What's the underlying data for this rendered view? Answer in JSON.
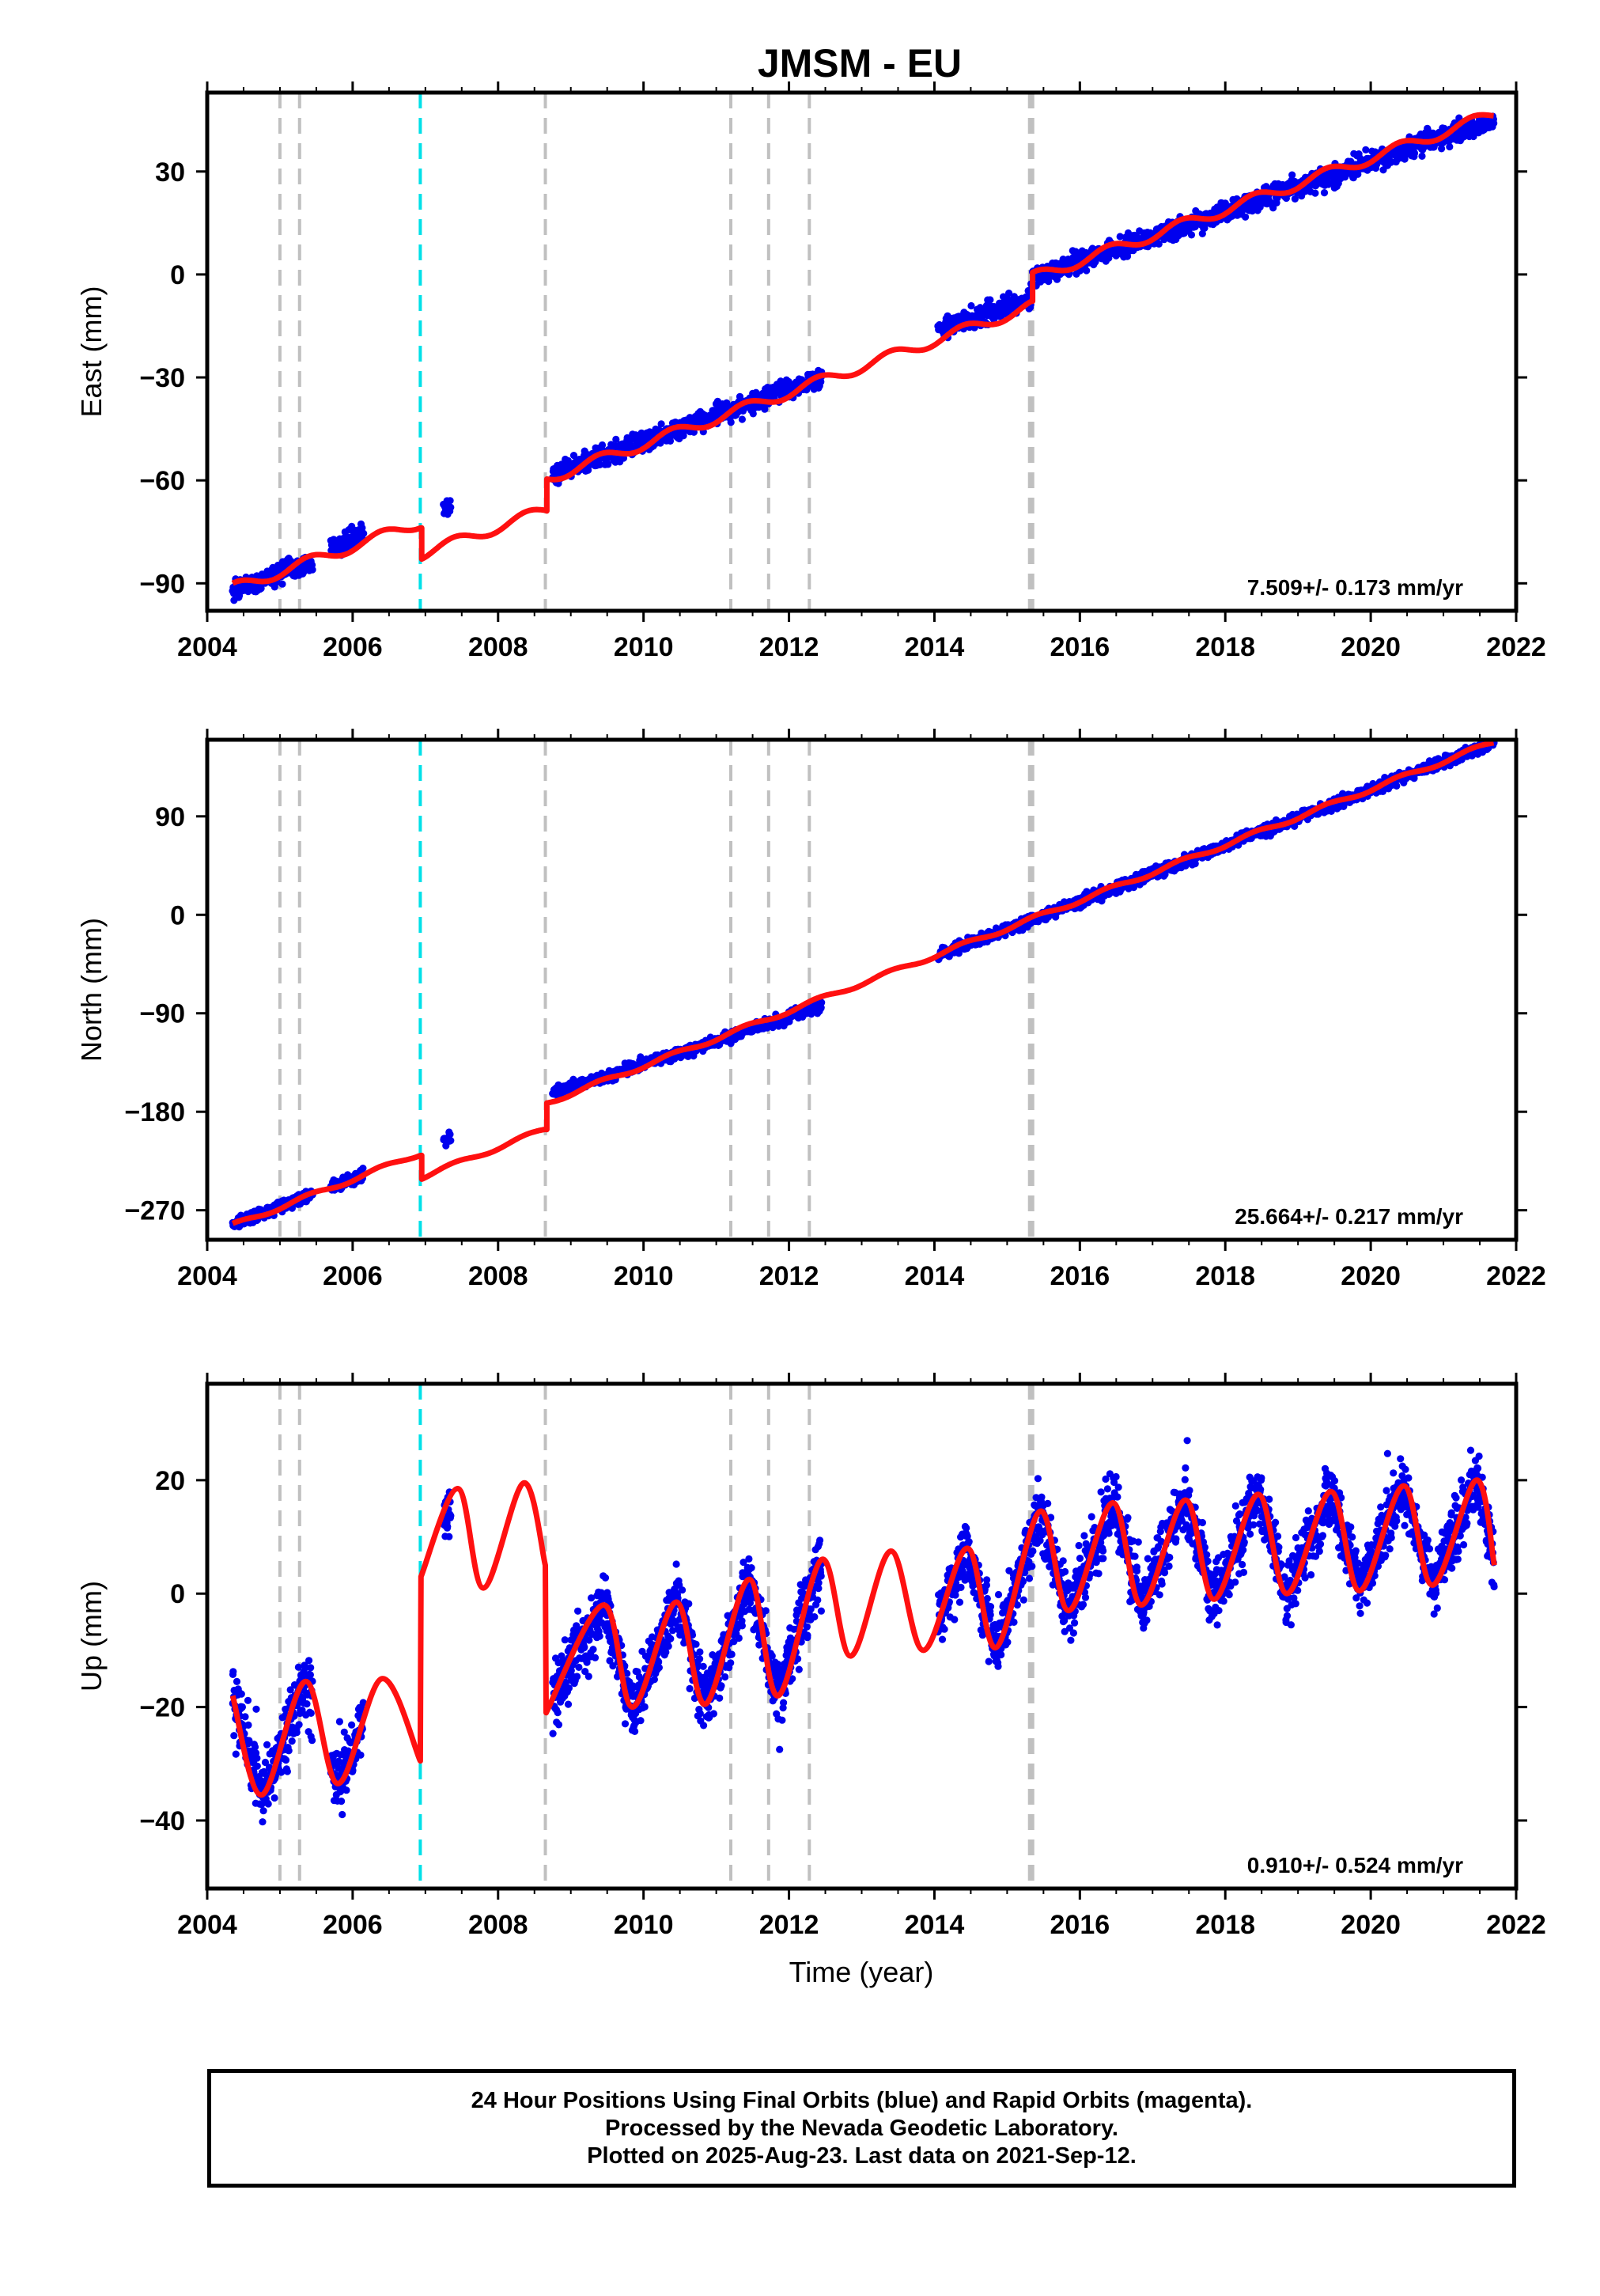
{
  "chart_data": {
    "type": "scatter",
    "title": "JMSM - EU",
    "xlabel": "Time (year)",
    "xlim": [
      2004.0,
      2022.0
    ],
    "xticks": [
      2004,
      2006,
      2008,
      2010,
      2012,
      2014,
      2016,
      2018,
      2020,
      2022
    ],
    "events": {
      "gray_dashed": [
        2005.0,
        2005.27,
        2008.65,
        2011.2,
        2011.72,
        2012.28
      ],
      "gray_dashed_thick": [
        2015.33
      ],
      "cyan_dashed": [
        2006.93
      ]
    },
    "data_segments": [
      [
        2004.35,
        2005.45
      ],
      [
        2005.7,
        2006.15
      ],
      [
        2007.25,
        2007.35
      ],
      [
        2008.75,
        2012.45
      ],
      [
        2014.05,
        2021.7
      ]
    ],
    "panels": [
      {
        "id": "east",
        "ylabel": "East (mm)",
        "ylim": [
          -98,
          53
        ],
        "yticks": [
          -90,
          -60,
          -30,
          0,
          30
        ],
        "ytick_labels": [
          "−90",
          "−60",
          "−30",
          "0",
          "30"
        ],
        "rate": "7.509+/- 0.173 mm/yr",
        "series": [
          {
            "name": "Final Orbits",
            "role": "daily positions",
            "color": "#0000ee",
            "x": [
              2004.35,
              2005.45,
              2005.7,
              2006.15,
              2008.75,
              2012.45,
              2014.05,
              2015.33,
              2015.34,
              2021.7
            ],
            "y": [
              -92,
              -84,
              -80,
              -76,
              -58,
              -30,
              -16,
              -7,
              -1,
              45
            ]
          },
          {
            "name": "Model",
            "role": "fitted trajectory",
            "color": "#ff1010",
            "x": [
              2004.35,
              2006.93,
              2006.94,
              2008.65,
              2008.66,
              2015.33,
              2015.34,
              2021.7
            ],
            "y": [
              -91.5,
              -72.3,
              -81.5,
              -68.7,
              -59.5,
              -9.3,
              -1.0,
              46.7
            ]
          }
        ]
      },
      {
        "id": "north",
        "ylabel": "North (mm)",
        "ylim": [
          -297,
          160
        ],
        "yticks": [
          -270,
          -180,
          -90,
          0,
          90
        ],
        "ytick_labels": [
          "−270",
          "−180",
          "−90",
          "0",
          "90"
        ],
        "rate": "25.664+/- 0.217 mm/yr",
        "series": [
          {
            "name": "Final Orbits",
            "role": "daily positions",
            "color": "#0000ee",
            "x": [
              2004.35,
              2005.45,
              2005.7,
              2006.15,
              2008.75,
              2012.45,
              2014.05,
              2015.33,
              2021.7
            ],
            "y": [
              -283,
              -255,
              -249,
              -237,
              -163,
              -84,
              -37,
              -5,
              158
            ]
          },
          {
            "name": "Model",
            "role": "fitted trajectory",
            "color": "#ff1010",
            "x": [
              2004.35,
              2006.93,
              2006.94,
              2008.65,
              2008.66,
              2015.33,
              2021.7
            ],
            "y": [
              -284,
              -218,
              -240,
              -196,
              -172,
              -4,
              158
            ]
          }
        ]
      },
      {
        "id": "up",
        "ylabel": "Up (mm)",
        "ylim": [
          -52,
          37
        ],
        "yticks": [
          -40,
          -20,
          0,
          20
        ],
        "ytick_labels": [
          "−40",
          "−20",
          "0",
          "20"
        ],
        "rate": "0.910+/- 0.524 mm/yr",
        "series": [
          {
            "name": "Final Orbits",
            "role": "daily positions",
            "color": "#0000ee",
            "note": "seasonal oscillation, annual amplitude ~9 mm",
            "x": [
              2004.35,
              2005.45,
              2005.7,
              2006.15,
              2008.75,
              2012.45,
              2014.05,
              2021.7
            ],
            "y": [
              -22,
              -30,
              -28,
              -26,
              -15,
              -6,
              -2,
              8
            ]
          },
          {
            "name": "Model",
            "role": "fitted trajectory",
            "color": "#ff1010",
            "x": [
              2004.35,
              2004.75,
              2005.35,
              2005.8,
              2006.4,
              2006.93,
              2006.94,
              2007.45,
              2007.8,
              2008.35,
              2008.65,
              2008.66,
              2009.45,
              2009.85,
              2010.45,
              2010.85,
              2011.45,
              2011.85,
              2012.45,
              2012.85,
              2013.4,
              2013.85,
              2014.45,
              2014.85,
              2015.45,
              2015.85,
              2016.45,
              2016.85,
              2017.45,
              2017.85,
              2018.45,
              2018.85,
              2019.45,
              2019.85,
              2020.45,
              2020.85,
              2021.45,
              2021.7
            ],
            "y": [
              -18,
              -35.5,
              -15.5,
              -33.5,
              -15,
              -29.5,
              3,
              18.5,
              1,
              19.5,
              5,
              -21,
              -2,
              -20,
              -1.5,
              -19.5,
              2.5,
              -18,
              6,
              -11,
              7.5,
              -10,
              8,
              -9.5,
              14.5,
              -3,
              16,
              -2,
              16.5,
              -1,
              17.5,
              0,
              18,
              0.5,
              19,
              1.5,
              20,
              5
            ]
          }
        ]
      }
    ],
    "footer": [
      "24 Hour Positions Using Final Orbits (blue) and Rapid Orbits (magenta).",
      "Processed by the Nevada Geodetic Laboratory.",
      "Plotted on 2025-Aug-23. Last data on 2021-Sep-12."
    ]
  }
}
